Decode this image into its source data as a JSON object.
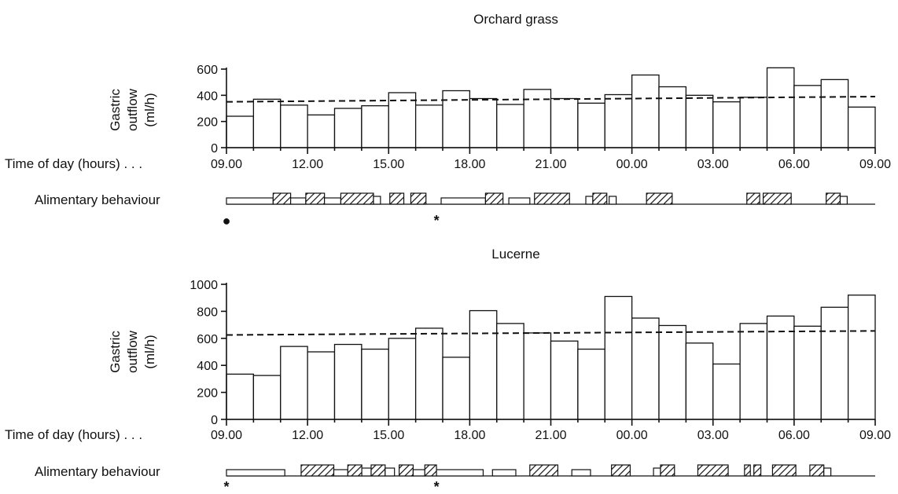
{
  "chart_data": [
    {
      "type": "bar",
      "title": "Orchard grass",
      "ylabel": [
        "Gastric",
        "outflow",
        "(ml/h)"
      ],
      "xlabel": "Time of day (hours) . . .",
      "x_ticks": [
        "09.00",
        "12.00",
        "15.00",
        "18.00",
        "21.00",
        "00.00",
        "03.00",
        "06.00",
        "09.00"
      ],
      "y_ticks": [
        0,
        200,
        400,
        600
      ],
      "ylim": [
        0,
        650
      ],
      "bar_width_hours": 1.0,
      "bars": [
        {
          "start": 0,
          "value": 240
        },
        {
          "start": 1,
          "value": 370
        },
        {
          "start": 2,
          "value": 325
        },
        {
          "start": 3,
          "value": 250
        },
        {
          "start": 4,
          "value": 300
        },
        {
          "start": 5,
          "value": 320
        },
        {
          "start": 6,
          "value": 420
        },
        {
          "start": 7,
          "value": 325
        },
        {
          "start": 8,
          "value": 435
        },
        {
          "start": 9,
          "value": 375
        },
        {
          "start": 10,
          "value": 330
        },
        {
          "start": 11,
          "value": 445
        },
        {
          "start": 12,
          "value": 375
        },
        {
          "start": 13,
          "value": 340
        },
        {
          "start": 14,
          "value": 405
        },
        {
          "start": 15,
          "value": 555
        },
        {
          "start": 16,
          "value": 465
        },
        {
          "start": 17,
          "value": 400
        },
        {
          "start": 18,
          "value": 350
        },
        {
          "start": 19,
          "value": 385
        },
        {
          "start": 20,
          "value": 610
        },
        {
          "start": 21,
          "value": 475
        },
        {
          "start": 22,
          "value": 520
        },
        {
          "start": 23,
          "value": 310
        }
      ],
      "mean_line": {
        "start": 350,
        "end": 390
      },
      "behaviour_label": "Alimentary behaviour",
      "behaviour": [
        {
          "kind": "open",
          "start": 0.0,
          "end": 2.0
        },
        {
          "kind": "hatched",
          "start": 2.0,
          "end": 2.75
        },
        {
          "kind": "open",
          "start": 2.75,
          "end": 3.4
        },
        {
          "kind": "hatched",
          "start": 3.4,
          "end": 4.2
        },
        {
          "kind": "open",
          "start": 4.2,
          "end": 4.9
        },
        {
          "kind": "hatched",
          "start": 4.9,
          "end": 6.3
        },
        {
          "kind": "open",
          "start": 6.3,
          "end": 6.6
        },
        {
          "kind": "hatched",
          "start": 7.0,
          "end": 7.6
        },
        {
          "kind": "hatched",
          "start": 7.9,
          "end": 8.55
        },
        {
          "kind": "open",
          "start": 9.2,
          "end": 11.1
        },
        {
          "kind": "hatched",
          "start": 11.1,
          "end": 11.85
        },
        {
          "kind": "open",
          "start": 12.1,
          "end": 13.0
        },
        {
          "kind": "hatched",
          "start": 13.2,
          "end": 14.7
        },
        {
          "kind": "open",
          "start": 15.4,
          "end": 15.7
        },
        {
          "kind": "hatched",
          "start": 15.7,
          "end": 16.3
        },
        {
          "kind": "open",
          "start": 16.4,
          "end": 16.7
        },
        {
          "kind": "hatched",
          "start": 18.0,
          "end": 19.1
        },
        {
          "kind": "hatched",
          "start": 22.3,
          "end": 22.85
        },
        {
          "kind": "hatched",
          "start": 23.0,
          "end": 24.2
        },
        {
          "kind": "hatched",
          "start": 25.7,
          "end": 26.3
        },
        {
          "kind": "open",
          "start": 26.3,
          "end": 26.6
        }
      ],
      "markers": [
        {
          "symbol": "●",
          "at": 0
        },
        {
          "symbol": "*",
          "at": 9.0
        }
      ]
    },
    {
      "type": "bar",
      "title": "Lucerne",
      "ylabel": [
        "Gastric",
        "outflow",
        "(ml/h)"
      ],
      "xlabel": "Time of day (hours) . . .",
      "x_ticks": [
        "09.00",
        "12.00",
        "15.00",
        "18.00",
        "21.00",
        "00.00",
        "03.00",
        "06.00",
        "09.00"
      ],
      "y_ticks": [
        0,
        200,
        400,
        600,
        800,
        1000
      ],
      "ylim": [
        0,
        1040
      ],
      "bar_width_hours": 1.0,
      "bars": [
        {
          "start": 0,
          "value": 335
        },
        {
          "start": 1,
          "value": 325
        },
        {
          "start": 2,
          "value": 540
        },
        {
          "start": 3,
          "value": 500
        },
        {
          "start": 4,
          "value": 555
        },
        {
          "start": 5,
          "value": 520
        },
        {
          "start": 6,
          "value": 600
        },
        {
          "start": 7,
          "value": 675
        },
        {
          "start": 8,
          "value": 460
        },
        {
          "start": 9,
          "value": 805
        },
        {
          "start": 10,
          "value": 710
        },
        {
          "start": 11,
          "value": 640
        },
        {
          "start": 12,
          "value": 580
        },
        {
          "start": 13,
          "value": 520
        },
        {
          "start": 14,
          "value": 910
        },
        {
          "start": 15,
          "value": 750
        },
        {
          "start": 16,
          "value": 695
        },
        {
          "start": 17,
          "value": 565
        },
        {
          "start": 18,
          "value": 410
        },
        {
          "start": 19,
          "value": 710
        },
        {
          "start": 20,
          "value": 765
        },
        {
          "start": 21,
          "value": 690
        },
        {
          "start": 22,
          "value": 830
        },
        {
          "start": 23,
          "value": 920
        }
      ],
      "mean_line": {
        "start": 625,
        "end": 655
      },
      "behaviour_label": "Alimentary behaviour",
      "behaviour": [
        {
          "kind": "open",
          "start": 0.0,
          "end": 2.5
        },
        {
          "kind": "hatched",
          "start": 3.2,
          "end": 4.6
        },
        {
          "kind": "open",
          "start": 4.6,
          "end": 5.2
        },
        {
          "kind": "hatched",
          "start": 5.2,
          "end": 5.8
        },
        {
          "kind": "open",
          "start": 5.8,
          "end": 6.2
        },
        {
          "kind": "hatched",
          "start": 6.2,
          "end": 6.8
        },
        {
          "kind": "open",
          "start": 6.8,
          "end": 7.2
        },
        {
          "kind": "hatched",
          "start": 7.4,
          "end": 8.0
        },
        {
          "kind": "open",
          "start": 8.0,
          "end": 8.5
        },
        {
          "kind": "hatched",
          "start": 8.5,
          "end": 9.0
        },
        {
          "kind": "open",
          "start": 9.0,
          "end": 11.0
        },
        {
          "kind": "open",
          "start": 11.4,
          "end": 12.4
        },
        {
          "kind": "hatched",
          "start": 13.0,
          "end": 14.2
        },
        {
          "kind": "open",
          "start": 14.8,
          "end": 15.6
        },
        {
          "kind": "hatched",
          "start": 16.5,
          "end": 17.3
        },
        {
          "kind": "open",
          "start": 18.3,
          "end": 18.6
        },
        {
          "kind": "hatched",
          "start": 18.6,
          "end": 19.2
        },
        {
          "kind": "hatched",
          "start": 20.2,
          "end": 21.5
        },
        {
          "kind": "hatched",
          "start": 22.2,
          "end": 22.45
        },
        {
          "kind": "hatched",
          "start": 22.6,
          "end": 22.9
        },
        {
          "kind": "hatched",
          "start": 23.4,
          "end": 24.4
        },
        {
          "kind": "hatched",
          "start": 25.0,
          "end": 25.6
        },
        {
          "kind": "open",
          "start": 25.6,
          "end": 25.9
        }
      ],
      "markers": [
        {
          "symbol": "*",
          "at": 0
        },
        {
          "symbol": "*",
          "at": 9.0
        }
      ]
    }
  ]
}
